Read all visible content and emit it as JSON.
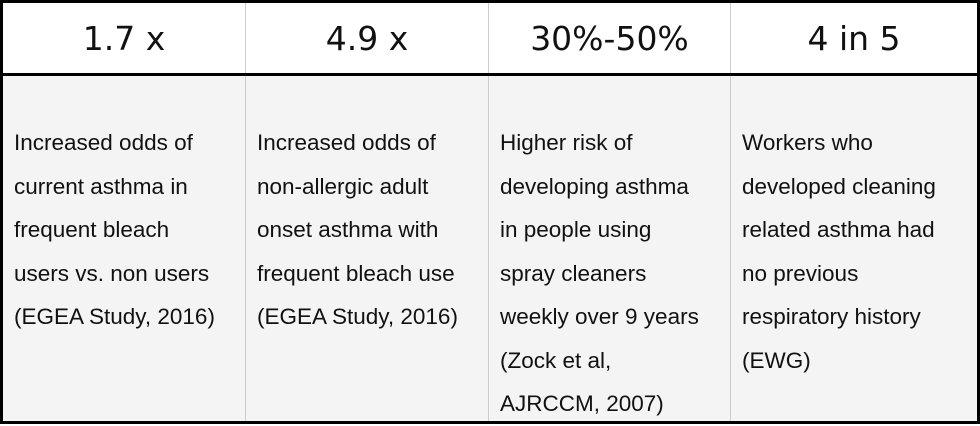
{
  "table": {
    "header": [
      "1.7 x",
      "4.9 x",
      "30%-50%",
      "4 in 5"
    ],
    "body": [
      [
        "Increased odds of",
        "current asthma in",
        "frequent bleach",
        "users vs. non users",
        "(EGEA Study, 2016)"
      ],
      [
        "Increased odds of",
        "non-allergic adult",
        "onset asthma with",
        "frequent bleach use",
        "(EGEA Study, 2016)"
      ],
      [
        "Higher risk of",
        "developing asthma",
        "in people using",
        "spray cleaners",
        "weekly over 9 years",
        "(Zock et al,",
        "AJRCCM, 2007)"
      ],
      [
        "Workers who",
        "developed cleaning",
        "related asthma had",
        "no previous",
        "respiratory history",
        "(EWG)"
      ]
    ]
  }
}
